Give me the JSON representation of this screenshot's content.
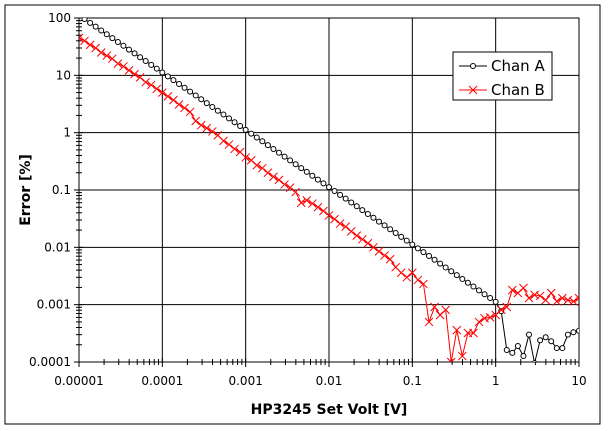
{
  "chart_data": {
    "type": "line",
    "title": "",
    "xlabel": "HP3245 Set Volt [V]",
    "ylabel": "Error [%]",
    "xscale": "log",
    "yscale": "log",
    "xlim": [
      1e-05,
      10
    ],
    "ylim": [
      0.0001,
      100
    ],
    "x_ticks": [
      "0.00001",
      "0.0001",
      "0.001",
      "0.01",
      "0.1",
      "1",
      "10"
    ],
    "y_ticks": [
      "0.0001",
      "0.001",
      "0.01",
      "0.1",
      "1",
      "10",
      "100"
    ],
    "grid": true,
    "legend_position": "top-right",
    "x": [
      1e-05,
      1.166e-05,
      1.359e-05,
      1.585e-05,
      1.848e-05,
      2.154e-05,
      2.512e-05,
      2.929e-05,
      3.415e-05,
      3.981e-05,
      4.642e-05,
      5.412e-05,
      6.31e-05,
      7.356e-05,
      8.577e-05,
      0.0001,
      0.0001166,
      0.0001359,
      0.0001585,
      0.0001848,
      0.0002154,
      0.0002512,
      0.0002929,
      0.0003415,
      0.0003981,
      0.0004642,
      0.0005412,
      0.000631,
      0.0007356,
      0.0008577,
      0.001,
      0.001166,
      0.001359,
      0.001585,
      0.001848,
      0.002154,
      0.002512,
      0.002929,
      0.003415,
      0.003981,
      0.004642,
      0.005412,
      0.00631,
      0.007356,
      0.008577,
      0.01,
      0.01166,
      0.01359,
      0.01585,
      0.01848,
      0.02154,
      0.02512,
      0.02929,
      0.03415,
      0.03981,
      0.04642,
      0.05412,
      0.0631,
      0.07356,
      0.08577,
      0.1,
      0.1166,
      0.1359,
      0.1585,
      0.1848,
      0.2154,
      0.2512,
      0.2929,
      0.3415,
      0.3981,
      0.4642,
      0.5412,
      0.631,
      0.7356,
      0.8577,
      1,
      1.166,
      1.359,
      1.585,
      1.848,
      2.154,
      2.512,
      2.929,
      3.415,
      3.981,
      4.642,
      5.412,
      6.31,
      7.356,
      8.577,
      10
    ],
    "series": [
      {
        "name": "Chan A",
        "color": "#000000",
        "marker": "circle",
        "values": [
          112,
          96.1,
          82.4,
          70.7,
          60.6,
          52.0,
          44.6,
          38.2,
          32.8,
          28.1,
          24.1,
          20.7,
          17.75,
          15.2,
          13.06,
          11.2,
          9.61,
          8.24,
          7.07,
          6.06,
          5.2,
          4.46,
          3.82,
          3.28,
          2.81,
          2.41,
          2.07,
          1.775,
          1.52,
          1.306,
          1.12,
          0.961,
          0.824,
          0.707,
          0.606,
          0.52,
          0.446,
          0.382,
          0.328,
          0.281,
          0.241,
          0.207,
          0.1775,
          0.152,
          0.1306,
          0.112,
          0.0961,
          0.0824,
          0.0707,
          0.0606,
          0.052,
          0.0446,
          0.0382,
          0.0328,
          0.0281,
          0.0241,
          0.0207,
          0.01775,
          0.0152,
          0.01306,
          0.0112,
          0.00961,
          0.00824,
          0.00707,
          0.00606,
          0.0052,
          0.00446,
          0.00382,
          0.00328,
          0.00281,
          0.00241,
          0.00207,
          0.001775,
          0.00152,
          0.001306,
          0.00112,
          0.00077,
          0.000162,
          0.000144,
          0.00019,
          0.000127,
          0.0003,
          9.5e-05,
          0.00024,
          0.00027,
          0.00023,
          0.000175,
          0.000175,
          0.0003,
          0.00033,
          0.00035
        ]
      },
      {
        "name": "Chan B",
        "color": "#ff0000",
        "marker": "x",
        "values": [
          45,
          40,
          34,
          30,
          25,
          22,
          19.5,
          16,
          14.3,
          12.2,
          10.5,
          9.2,
          7.6,
          6.8,
          5.8,
          5.0,
          4.3,
          3.7,
          3.1,
          2.7,
          2.3,
          1.6,
          1.35,
          1.2,
          1.05,
          0.9,
          0.72,
          0.62,
          0.52,
          0.46,
          0.37,
          0.33,
          0.27,
          0.24,
          0.2,
          0.17,
          0.15,
          0.125,
          0.11,
          0.092,
          0.06,
          0.066,
          0.058,
          0.05,
          0.043,
          0.036,
          0.031,
          0.026,
          0.023,
          0.019,
          0.016,
          0.0138,
          0.0118,
          0.01,
          0.0085,
          0.0072,
          0.0062,
          0.0045,
          0.0036,
          0.003,
          0.0036,
          0.0027,
          0.0023,
          0.0005,
          0.00091,
          0.00066,
          0.00081,
          0.0001,
          0.00036,
          0.000127,
          0.00032,
          0.00032,
          0.0005,
          0.00058,
          0.0006,
          0.00066,
          0.00081,
          0.00091,
          0.0018,
          0.0016,
          0.00195,
          0.0013,
          0.00148,
          0.00142,
          0.0012,
          0.0016,
          0.00114,
          0.0013,
          0.0012,
          0.00114,
          0.0013
        ]
      }
    ]
  }
}
